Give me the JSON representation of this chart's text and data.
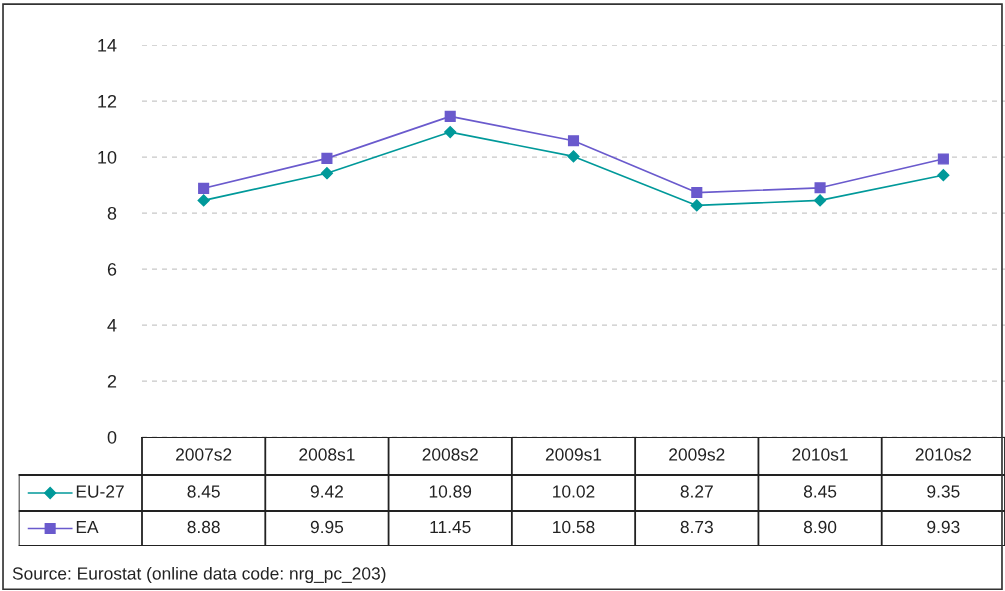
{
  "chart_data": {
    "type": "line",
    "categories": [
      "2007s2",
      "2008s1",
      "2008s2",
      "2009s1",
      "2009s2",
      "2010s1",
      "2010s2"
    ],
    "series": [
      {
        "name": "EU-27",
        "color": "#00999a",
        "marker": "diamond",
        "values": [
          8.45,
          9.42,
          10.89,
          10.02,
          8.27,
          8.45,
          9.35
        ],
        "value_labels": [
          "8.45",
          "9.42",
          "10.89",
          "10.02",
          "8.27",
          "8.45",
          "9.35"
        ]
      },
      {
        "name": "EA",
        "color": "#6a5acd",
        "marker": "square",
        "values": [
          8.88,
          9.95,
          11.45,
          10.58,
          8.73,
          8.9,
          9.93
        ],
        "value_labels": [
          "8.88",
          "9.95",
          "11.45",
          "10.58",
          "8.73",
          "8.90",
          "9.93"
        ]
      }
    ],
    "ylim": [
      0,
      14
    ],
    "yticks": [
      0,
      2,
      4,
      6,
      8,
      10,
      12,
      14
    ],
    "grid": "y",
    "legend": "bottom left",
    "line_style": "solid",
    "annotations": [
      "Source: Eurostat (online data code: nrg_pc_203)"
    ]
  }
}
